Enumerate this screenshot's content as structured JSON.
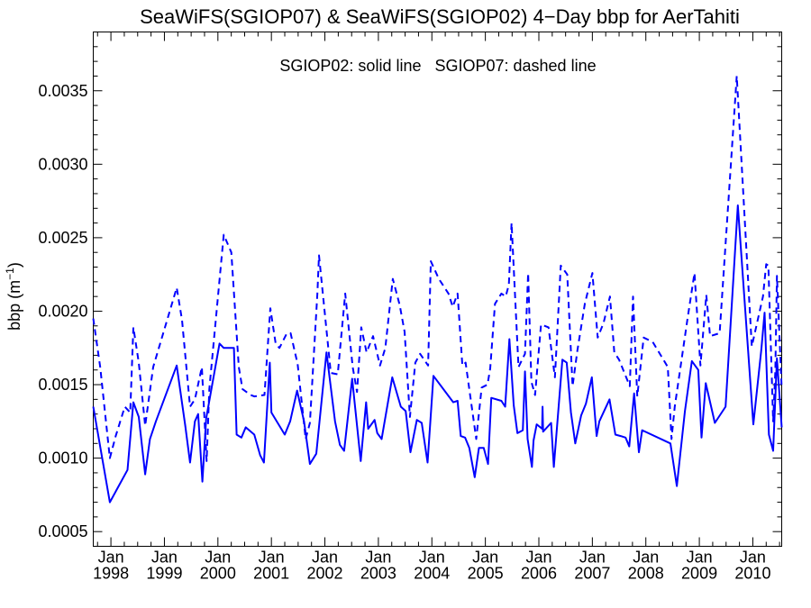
{
  "chart_data": {
    "type": "line",
    "title": "SeaWiFS(SGIOP07) & SeaWiFS(SGIOP02) 4−Day bbp for AerTahiti",
    "annotation": "SGIOP02: solid line   SGIOP07: dashed line",
    "ylabel": "bbp (m",
    "ylabel_sup": "−1",
    "ylabel_close": ")",
    "xlim": [
      1997.67,
      2010.54
    ],
    "ylim": [
      0.0004,
      0.0039
    ],
    "yticks": [
      0.0005,
      0.001,
      0.0015,
      0.002,
      0.0025,
      0.003,
      0.0035
    ],
    "ytick_labels": [
      "0.0005",
      "0.0010",
      "0.0015",
      "0.0020",
      "0.0025",
      "0.0030",
      "0.0035"
    ],
    "xticks": [
      {
        "month": "Jan",
        "year": "1998",
        "x": 1998.0
      },
      {
        "month": "Jan",
        "year": "1999",
        "x": 1999.0
      },
      {
        "month": "Jan",
        "year": "2000",
        "x": 2000.0
      },
      {
        "month": "Jan",
        "year": "2001",
        "x": 2001.0
      },
      {
        "month": "Jan",
        "year": "2002",
        "x": 2002.0
      },
      {
        "month": "Jan",
        "year": "2003",
        "x": 2003.0
      },
      {
        "month": "Jan",
        "year": "2004",
        "x": 2004.0
      },
      {
        "month": "Jan",
        "year": "2005",
        "x": 2005.0
      },
      {
        "month": "Jan",
        "year": "2006",
        "x": 2006.0
      },
      {
        "month": "Jan",
        "year": "2007",
        "x": 2007.0
      },
      {
        "month": "Jan",
        "year": "2008",
        "x": 2008.0
      },
      {
        "month": "Jan",
        "year": "2009",
        "x": 2009.0
      },
      {
        "month": "Jan",
        "year": "2010",
        "x": 2010.0
      }
    ],
    "grid": false,
    "series": [
      {
        "name": "SGIOP02",
        "style": "solid",
        "color": "#0000ff",
        "points": [
          [
            1997.67,
            0.00135
          ],
          [
            1997.98,
            0.0007
          ],
          [
            1998.31,
            0.00092
          ],
          [
            1998.42,
            0.00138
          ],
          [
            1998.52,
            0.00128
          ],
          [
            1998.64,
            0.00089
          ],
          [
            1998.73,
            0.00113
          ],
          [
            1998.84,
            0.00125
          ],
          [
            1999.23,
            0.00163
          ],
          [
            1999.39,
            0.00122
          ],
          [
            1999.48,
            0.00097
          ],
          [
            1999.57,
            0.00125
          ],
          [
            1999.63,
            0.0013
          ],
          [
            1999.71,
            0.00084
          ],
          [
            1999.78,
            0.00127
          ],
          [
            2000.03,
            0.00178
          ],
          [
            2000.11,
            0.00175
          ],
          [
            2000.3,
            0.00175
          ],
          [
            2000.35,
            0.00116
          ],
          [
            2000.44,
            0.00114
          ],
          [
            2000.52,
            0.00121
          ],
          [
            2000.68,
            0.00116
          ],
          [
            2000.79,
            0.00102
          ],
          [
            2000.86,
            0.00097
          ],
          [
            2000.97,
            0.00165
          ],
          [
            2001.0,
            0.00131
          ],
          [
            2001.25,
            0.00116
          ],
          [
            2001.35,
            0.00125
          ],
          [
            2001.48,
            0.00146
          ],
          [
            2001.61,
            0.00125
          ],
          [
            2001.72,
            0.00096
          ],
          [
            2001.84,
            0.00103
          ],
          [
            2002.03,
            0.00172
          ],
          [
            2002.19,
            0.00125
          ],
          [
            2002.28,
            0.00109
          ],
          [
            2002.36,
            0.00105
          ],
          [
            2002.51,
            0.00154
          ],
          [
            2002.67,
            0.00098
          ],
          [
            2002.77,
            0.00138
          ],
          [
            2002.81,
            0.0012
          ],
          [
            2002.93,
            0.00126
          ],
          [
            2002.98,
            0.00117
          ],
          [
            2003.06,
            0.00113
          ],
          [
            2003.26,
            0.00155
          ],
          [
            2003.42,
            0.00135
          ],
          [
            2003.51,
            0.00132
          ],
          [
            2003.6,
            0.00104
          ],
          [
            2003.72,
            0.00126
          ],
          [
            2003.81,
            0.00124
          ],
          [
            2003.92,
            0.00097
          ],
          [
            2004.03,
            0.00156
          ],
          [
            2004.4,
            0.00138
          ],
          [
            2004.48,
            0.00139
          ],
          [
            2004.54,
            0.00115
          ],
          [
            2004.62,
            0.00114
          ],
          [
            2004.7,
            0.00107
          ],
          [
            2004.8,
            0.00087
          ],
          [
            2004.88,
            0.00107
          ],
          [
            2004.97,
            0.00107
          ],
          [
            2005.05,
            0.00096
          ],
          [
            2005.11,
            0.00141
          ],
          [
            2005.3,
            0.00139
          ],
          [
            2005.37,
            0.00135
          ],
          [
            2005.45,
            0.00181
          ],
          [
            2005.53,
            0.00136
          ],
          [
            2005.6,
            0.00117
          ],
          [
            2005.7,
            0.00119
          ],
          [
            2005.74,
            0.00159
          ],
          [
            2005.79,
            0.00113
          ],
          [
            2005.87,
            0.00094
          ],
          [
            2005.9,
            0.00112
          ],
          [
            2005.96,
            0.00123
          ],
          [
            2006.06,
            0.0012
          ],
          [
            2006.07,
            0.00135
          ],
          [
            2006.08,
            0.00118
          ],
          [
            2006.23,
            0.00124
          ],
          [
            2006.28,
            0.00094
          ],
          [
            2006.44,
            0.00167
          ],
          [
            2006.52,
            0.00165
          ],
          [
            2006.6,
            0.00131
          ],
          [
            2006.68,
            0.0011
          ],
          [
            2006.79,
            0.00129
          ],
          [
            2006.88,
            0.00137
          ],
          [
            2006.99,
            0.00155
          ],
          [
            2007.08,
            0.00115
          ],
          [
            2007.13,
            0.00125
          ],
          [
            2007.32,
            0.0014
          ],
          [
            2007.43,
            0.00116
          ],
          [
            2007.53,
            0.00115
          ],
          [
            2007.62,
            0.00114
          ],
          [
            2007.69,
            0.00108
          ],
          [
            2007.78,
            0.00144
          ],
          [
            2007.87,
            0.00104
          ],
          [
            2007.93,
            0.00119
          ],
          [
            2008.46,
            0.0011
          ],
          [
            2008.58,
            0.00081
          ],
          [
            2008.73,
            0.00132
          ],
          [
            2008.86,
            0.00166
          ],
          [
            2008.98,
            0.0016
          ],
          [
            2009.04,
            0.00114
          ],
          [
            2009.12,
            0.00151
          ],
          [
            2009.29,
            0.00124
          ],
          [
            2009.49,
            0.00135
          ],
          [
            2009.72,
            0.00272
          ],
          [
            2010.01,
            0.00123
          ],
          [
            2010.16,
            0.00174
          ],
          [
            2010.22,
            0.00199
          ],
          [
            2010.3,
            0.00116
          ],
          [
            2010.38,
            0.00105
          ],
          [
            2010.45,
            0.00168
          ],
          [
            2010.54,
            0.00121
          ]
        ]
      },
      {
        "name": "SGIOP07",
        "style": "dashed",
        "color": "#0000ff",
        "points": [
          [
            1997.67,
            0.00195
          ],
          [
            1997.8,
            0.00162
          ],
          [
            1997.98,
            0.001
          ],
          [
            1998.09,
            0.00115
          ],
          [
            1998.26,
            0.00135
          ],
          [
            1998.36,
            0.00131
          ],
          [
            1998.42,
            0.00189
          ],
          [
            1998.52,
            0.00165
          ],
          [
            1998.64,
            0.00122
          ],
          [
            1998.79,
            0.00162
          ],
          [
            1999.23,
            0.00216
          ],
          [
            1999.33,
            0.00194
          ],
          [
            1999.48,
            0.00135
          ],
          [
            1999.57,
            0.0014
          ],
          [
            1999.7,
            0.00162
          ],
          [
            1999.79,
            0.00098
          ],
          [
            1999.84,
            0.00147
          ],
          [
            2000.11,
            0.00252
          ],
          [
            2000.25,
            0.0024
          ],
          [
            2000.39,
            0.00162
          ],
          [
            2000.46,
            0.00147
          ],
          [
            2000.61,
            0.00143
          ],
          [
            2000.68,
            0.00142
          ],
          [
            2000.87,
            0.00143
          ],
          [
            2000.98,
            0.00202
          ],
          [
            2001.08,
            0.00178
          ],
          [
            2001.15,
            0.00175
          ],
          [
            2001.29,
            0.00185
          ],
          [
            2001.36,
            0.00185
          ],
          [
            2001.49,
            0.00164
          ],
          [
            2001.64,
            0.00113
          ],
          [
            2001.72,
            0.00124
          ],
          [
            2001.86,
            0.00212
          ],
          [
            2001.89,
            0.00238
          ],
          [
            2002.11,
            0.00158
          ],
          [
            2002.24,
            0.00157
          ],
          [
            2002.38,
            0.00212
          ],
          [
            2002.52,
            0.00162
          ],
          [
            2002.6,
            0.00145
          ],
          [
            2002.68,
            0.00189
          ],
          [
            2002.78,
            0.00172
          ],
          [
            2002.9,
            0.00183
          ],
          [
            2003.03,
            0.00163
          ],
          [
            2003.13,
            0.00175
          ],
          [
            2003.27,
            0.00222
          ],
          [
            2003.4,
            0.00204
          ],
          [
            2003.49,
            0.00186
          ],
          [
            2003.59,
            0.00128
          ],
          [
            2003.69,
            0.00165
          ],
          [
            2003.78,
            0.00171
          ],
          [
            2003.93,
            0.00163
          ],
          [
            2003.98,
            0.00234
          ],
          [
            2004.13,
            0.00222
          ],
          [
            2004.31,
            0.00212
          ],
          [
            2004.39,
            0.00203
          ],
          [
            2004.48,
            0.00212
          ],
          [
            2004.57,
            0.00163
          ],
          [
            2004.63,
            0.00165
          ],
          [
            2004.73,
            0.00139
          ],
          [
            2004.83,
            0.00113
          ],
          [
            2004.93,
            0.00148
          ],
          [
            2005.04,
            0.0015
          ],
          [
            2005.09,
            0.00161
          ],
          [
            2005.18,
            0.00205
          ],
          [
            2005.3,
            0.00212
          ],
          [
            2005.38,
            0.0021
          ],
          [
            2005.44,
            0.00218
          ],
          [
            2005.49,
            0.0026
          ],
          [
            2005.62,
            0.00162
          ],
          [
            2005.74,
            0.00171
          ],
          [
            2005.8,
            0.00226
          ],
          [
            2005.86,
            0.00152
          ],
          [
            2005.93,
            0.00143
          ],
          [
            2006.04,
            0.00191
          ],
          [
            2006.18,
            0.00189
          ],
          [
            2006.3,
            0.00155
          ],
          [
            2006.41,
            0.00231
          ],
          [
            2006.53,
            0.00225
          ],
          [
            2006.63,
            0.00149
          ],
          [
            2006.72,
            0.00173
          ],
          [
            2006.86,
            0.00205
          ],
          [
            2007.0,
            0.00226
          ],
          [
            2007.1,
            0.00182
          ],
          [
            2007.21,
            0.00192
          ],
          [
            2007.33,
            0.0021
          ],
          [
            2007.41,
            0.00172
          ],
          [
            2007.5,
            0.00167
          ],
          [
            2007.7,
            0.00149
          ],
          [
            2007.76,
            0.0021
          ],
          [
            2007.84,
            0.00142
          ],
          [
            2007.96,
            0.00182
          ],
          [
            2008.13,
            0.00179
          ],
          [
            2008.41,
            0.00162
          ],
          [
            2008.48,
            0.00113
          ],
          [
            2008.54,
            0.00135
          ],
          [
            2008.78,
            0.00195
          ],
          [
            2008.91,
            0.00226
          ],
          [
            2009.02,
            0.00163
          ],
          [
            2009.13,
            0.00211
          ],
          [
            2009.2,
            0.00183
          ],
          [
            2009.38,
            0.00185
          ],
          [
            2009.7,
            0.0036
          ],
          [
            2009.98,
            0.00176
          ],
          [
            2010.19,
            0.0021
          ],
          [
            2010.25,
            0.00232
          ],
          [
            2010.29,
            0.00231
          ],
          [
            2010.38,
            0.00125
          ],
          [
            2010.42,
            0.00159
          ],
          [
            2010.45,
            0.00224
          ],
          [
            2010.54,
            0.00147
          ]
        ]
      }
    ]
  }
}
